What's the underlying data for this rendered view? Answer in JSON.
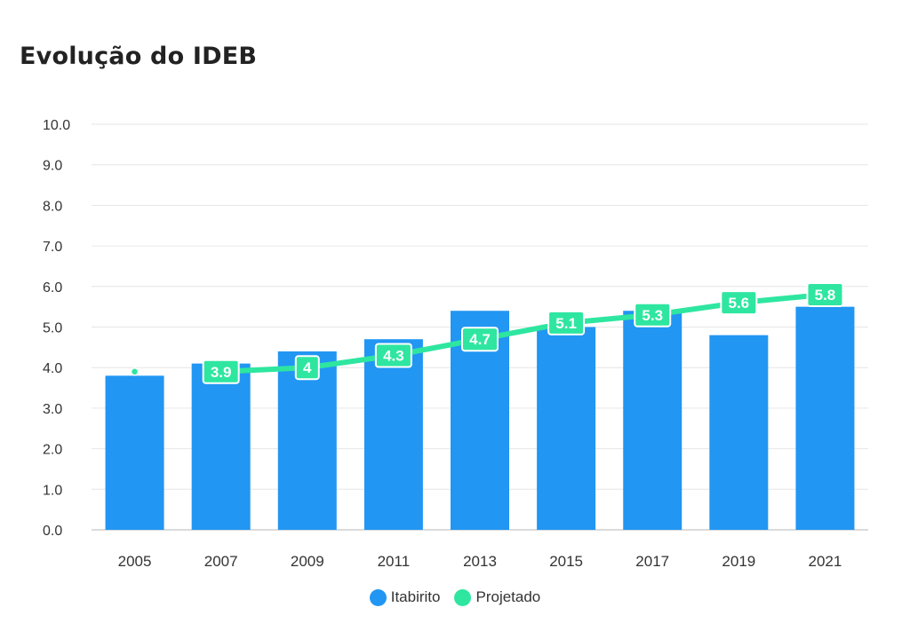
{
  "chart_data": {
    "type": "bar",
    "title": "Evolução do IDEB",
    "categories": [
      "2005",
      "2007",
      "2009",
      "2011",
      "2013",
      "2015",
      "2017",
      "2019",
      "2021"
    ],
    "series": [
      {
        "name": "Itabirito",
        "type": "bar",
        "color": "#2196f3",
        "values": [
          3.8,
          4.1,
          4.4,
          4.7,
          5.4,
          5.0,
          5.4,
          4.8,
          5.5
        ]
      },
      {
        "name": "Projetado",
        "type": "line",
        "color": "#2ee6a0",
        "values": [
          3.9,
          3.9,
          4,
          4.3,
          4.7,
          5.1,
          5.3,
          5.6,
          5.8
        ],
        "data_labels": [
          "",
          "3.9",
          "4",
          "4.3",
          "4.7",
          "5.1",
          "5.3",
          "5.6",
          "5.8"
        ]
      }
    ],
    "ylim": [
      0,
      10
    ],
    "yticks": [
      "0.0",
      "1.0",
      "2.0",
      "3.0",
      "4.0",
      "5.0",
      "6.0",
      "7.0",
      "8.0",
      "9.0",
      "10.0"
    ],
    "grid": true,
    "legend_position": "bottom"
  },
  "legend": {
    "items": [
      {
        "label": "Itabirito",
        "color": "#2196f3"
      },
      {
        "label": "Projetado",
        "color": "#2ee6a0"
      }
    ]
  }
}
